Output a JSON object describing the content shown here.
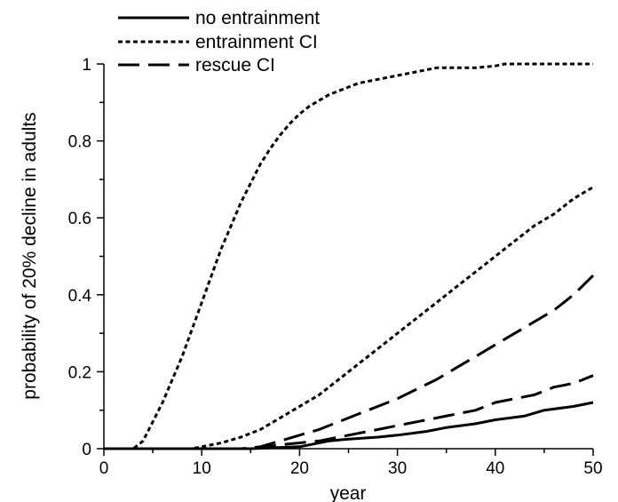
{
  "chart_data": {
    "type": "line",
    "title": "",
    "xlabel": "year",
    "ylabel": "probability of 20% decline in adults",
    "xlim": [
      0,
      50
    ],
    "ylim": [
      0,
      1
    ],
    "x_ticks": [
      "0",
      "10",
      "20",
      "30",
      "40",
      "50"
    ],
    "y_ticks": [
      "0",
      "0.2",
      "0.4",
      "0.6",
      "0.8",
      "1"
    ],
    "grid": false,
    "legend": {
      "placement": "top-left",
      "entries": [
        {
          "label": "no entrainment",
          "style": "solid"
        },
        {
          "label": "entrainment CI",
          "style": "dotted"
        },
        {
          "label": "rescue CI",
          "style": "dashed"
        }
      ]
    },
    "series": [
      {
        "name": "no entrainment",
        "style": "solid",
        "x": [
          0,
          15,
          20,
          21,
          23,
          25,
          28,
          30,
          33,
          35,
          38,
          40,
          43,
          45,
          48,
          50
        ],
        "y": [
          0,
          0,
          0.005,
          0.01,
          0.02,
          0.025,
          0.03,
          0.035,
          0.045,
          0.055,
          0.065,
          0.075,
          0.085,
          0.1,
          0.11,
          0.12
        ]
      },
      {
        "name": "entrainment CI",
        "style": "dotted",
        "x": [
          0,
          3,
          4,
          5,
          6,
          7,
          8,
          9,
          10,
          11,
          12,
          13,
          14,
          15,
          16,
          17,
          18,
          19,
          20,
          21,
          22,
          23,
          24,
          25,
          26,
          27,
          28,
          29,
          30,
          32,
          34,
          36,
          38,
          40,
          41,
          42,
          45,
          48,
          50
        ],
        "y": [
          0,
          0,
          0.02,
          0.07,
          0.12,
          0.18,
          0.24,
          0.31,
          0.38,
          0.45,
          0.52,
          0.58,
          0.64,
          0.69,
          0.74,
          0.78,
          0.815,
          0.845,
          0.87,
          0.89,
          0.905,
          0.92,
          0.93,
          0.94,
          0.95,
          0.955,
          0.96,
          0.965,
          0.97,
          0.98,
          0.99,
          0.99,
          0.99,
          0.995,
          1.0,
          1.0,
          1.0,
          1.0,
          1.0
        ]
      },
      {
        "name": "entrainment CI",
        "style": "dotted",
        "x": [
          0,
          9,
          10,
          12,
          14,
          16,
          18,
          20,
          22,
          24,
          26,
          28,
          30,
          32,
          34,
          36,
          38,
          40,
          42,
          44,
          46,
          48,
          50
        ],
        "y": [
          0,
          0,
          0.005,
          0.015,
          0.03,
          0.05,
          0.08,
          0.11,
          0.14,
          0.18,
          0.22,
          0.26,
          0.3,
          0.34,
          0.38,
          0.42,
          0.46,
          0.5,
          0.54,
          0.58,
          0.61,
          0.65,
          0.68
        ]
      },
      {
        "name": "rescue CI",
        "style": "dashed",
        "x": [
          0,
          14,
          16,
          18,
          20,
          22,
          24,
          26,
          28,
          30,
          32,
          34,
          36,
          38,
          40,
          42,
          44,
          46,
          48,
          50
        ],
        "y": [
          0,
          0,
          0.005,
          0.02,
          0.035,
          0.05,
          0.07,
          0.09,
          0.11,
          0.13,
          0.155,
          0.18,
          0.21,
          0.24,
          0.27,
          0.3,
          0.33,
          0.36,
          0.4,
          0.45
        ]
      },
      {
        "name": "rescue CI",
        "style": "dashed",
        "x": [
          0,
          15,
          18,
          20,
          22,
          24,
          26,
          28,
          30,
          32,
          34,
          36,
          38,
          40,
          42,
          44,
          46,
          48,
          50
        ],
        "y": [
          0,
          0,
          0.01,
          0.015,
          0.02,
          0.03,
          0.04,
          0.05,
          0.06,
          0.07,
          0.08,
          0.09,
          0.1,
          0.12,
          0.13,
          0.14,
          0.16,
          0.17,
          0.19
        ]
      }
    ]
  }
}
